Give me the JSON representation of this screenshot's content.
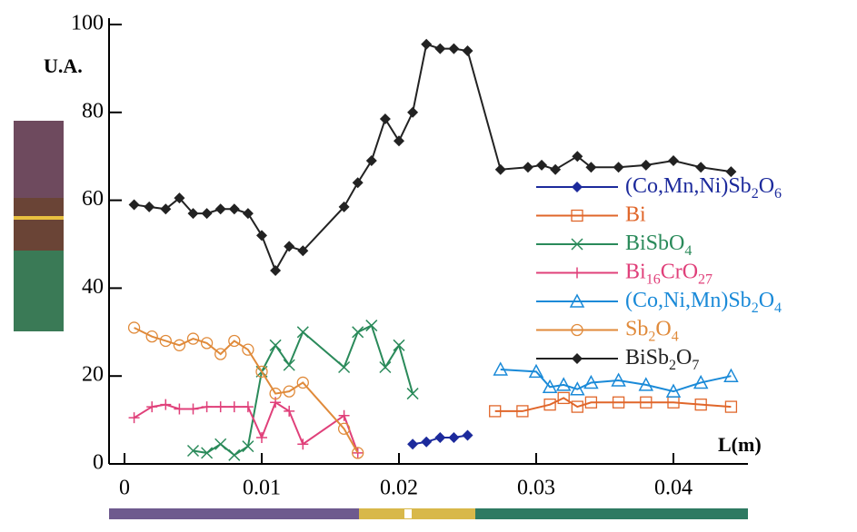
{
  "chart_data": {
    "type": "line",
    "y_label": "U.A.",
    "x_label": "L(m)",
    "xlim": [
      -0.0011,
      0.0455
    ],
    "ylim": [
      0,
      100
    ],
    "xticks": [
      0,
      0.01,
      0.02,
      0.03,
      0.04
    ],
    "yticks": [
      0,
      20,
      40,
      60,
      80,
      100
    ],
    "series": [
      {
        "name": "(Co,Mn,Ni)Sb2O6",
        "color": "#1c2a9c",
        "marker": "diamond",
        "x": [
          0.021,
          0.022,
          0.023,
          0.024,
          0.025
        ],
        "values": [
          4.5,
          5,
          6,
          6,
          6.5
        ]
      },
      {
        "name": "Bi",
        "color": "#e0662a",
        "marker": "square",
        "x": [
          0.027,
          0.029,
          0.031,
          0.032,
          0.033,
          0.034,
          0.036,
          0.038,
          0.04,
          0.042,
          0.0442
        ],
        "values": [
          12,
          12,
          13.5,
          15,
          13,
          14,
          14,
          14,
          14,
          13.5,
          13
        ]
      },
      {
        "name": "BiSbO4",
        "color": "#2a8a5a",
        "marker": "x",
        "x": [
          0.005,
          0.006,
          0.007,
          0.008,
          0.009,
          0.01,
          0.011,
          0.012,
          0.013,
          0.016,
          0.017,
          0.018,
          0.019,
          0.02,
          0.021
        ],
        "values": [
          3,
          2.5,
          4.5,
          2,
          4,
          21,
          27,
          22.5,
          30,
          22,
          30,
          31.5,
          22,
          27,
          16
        ]
      },
      {
        "name": "Bi16CrO27",
        "color": "#e0407a",
        "marker": "plus",
        "x": [
          0.0007,
          0.002,
          0.003,
          0.004,
          0.005,
          0.006,
          0.007,
          0.008,
          0.009,
          0.01,
          0.011,
          0.012,
          0.013,
          0.016,
          0.017
        ],
        "values": [
          10.5,
          13,
          13.5,
          12.5,
          12.5,
          13,
          13,
          13,
          13,
          6,
          14,
          12,
          4.5,
          11,
          2.5
        ]
      },
      {
        "name": "(Co,Ni,Mn)Sb2O4",
        "color": "#1a8ad8",
        "marker": "triangle",
        "x": [
          0.0274,
          0.03,
          0.031,
          0.032,
          0.033,
          0.034,
          0.036,
          0.038,
          0.04,
          0.042,
          0.0442
        ],
        "values": [
          21.5,
          21,
          17.5,
          18,
          17,
          18.5,
          19,
          18,
          16.5,
          18.5,
          20
        ]
      },
      {
        "name": "Sb2O4",
        "color": "#e08a3a",
        "marker": "circle",
        "x": [
          0.0007,
          0.002,
          0.003,
          0.004,
          0.005,
          0.006,
          0.007,
          0.008,
          0.009,
          0.01,
          0.011,
          0.012,
          0.013,
          0.016,
          0.017
        ],
        "values": [
          31,
          29,
          28,
          27,
          28.5,
          27.5,
          25,
          28,
          26,
          21,
          16,
          16.5,
          18.5,
          8,
          2.5
        ]
      },
      {
        "name": "BiSb2O7",
        "color": "#222222",
        "marker": "diamond",
        "x": [
          0.0007,
          0.0018,
          0.003,
          0.004,
          0.005,
          0.006,
          0.007,
          0.008,
          0.009,
          0.01,
          0.011,
          0.012,
          0.013,
          0.016,
          0.017,
          0.018,
          0.019,
          0.02,
          0.021,
          0.022,
          0.023,
          0.024,
          0.025,
          0.0274,
          0.0294,
          0.0304,
          0.0314,
          0.033,
          0.034,
          0.036,
          0.038,
          0.04,
          0.042,
          0.0442
        ],
        "values": [
          59,
          58.5,
          58,
          60.5,
          57,
          57,
          58,
          58,
          57,
          52,
          44,
          49.5,
          48.5,
          58.5,
          64,
          69,
          78.5,
          73.5,
          80,
          95.5,
          94.5,
          94.5,
          94,
          67,
          67.5,
          68,
          67,
          70,
          67.5,
          67.5,
          68,
          69,
          67.5,
          66.5
        ]
      }
    ]
  }
}
